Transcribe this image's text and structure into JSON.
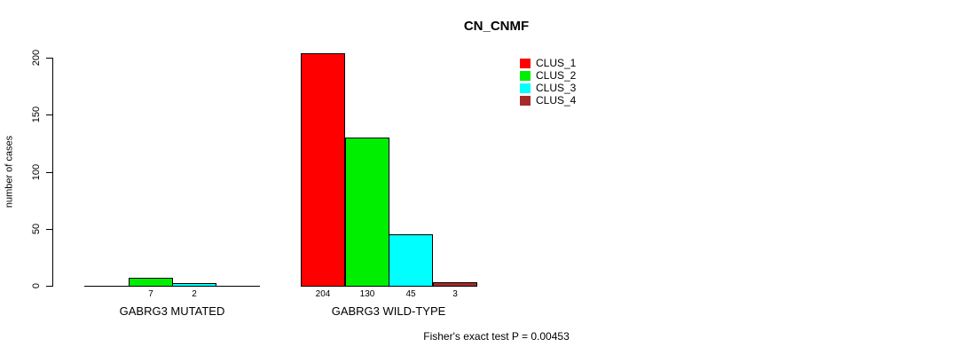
{
  "chart_data": {
    "type": "bar",
    "title": "CN_CNMF",
    "ylabel": "number of cases",
    "xlabel": "",
    "ylim": [
      0,
      200
    ],
    "yticks": [
      0,
      50,
      100,
      150,
      200
    ],
    "grid": false,
    "legend_position": "top-right",
    "series": [
      {
        "name": "CLUS_1",
        "color": "#FF0000"
      },
      {
        "name": "CLUS_2",
        "color": "#00EE00"
      },
      {
        "name": "CLUS_3",
        "color": "#00FFFF"
      },
      {
        "name": "CLUS_4",
        "color": "#A52A2A"
      }
    ],
    "categories": [
      "GABRG3 MUTATED",
      "GABRG3 WILD-TYPE"
    ],
    "values": [
      [
        0,
        7,
        2,
        0
      ],
      [
        204,
        130,
        45,
        3
      ]
    ],
    "bar_value_labels": [
      [
        "",
        "7",
        "2",
        ""
      ],
      [
        "204",
        "130",
        "45",
        "3"
      ]
    ],
    "footnote": "Fisher's exact test P = 0.00453",
    "axis_color": "#000000",
    "bar_border_color": "#000000"
  }
}
